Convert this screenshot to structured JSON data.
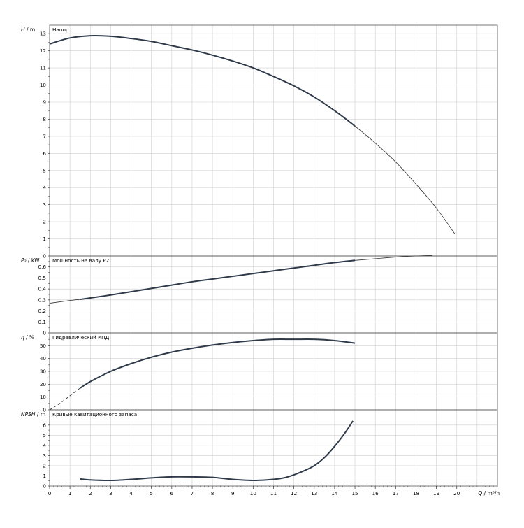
{
  "chart_data": [
    {
      "type": "line",
      "id": "head",
      "title": "Напор",
      "ylabel_sym": "H",
      "ylabel_unit": " / m",
      "xlim": [
        0,
        22
      ],
      "ylim": [
        0,
        13.5
      ],
      "yticks": [
        0,
        1,
        2,
        3,
        4,
        5,
        6,
        7,
        8,
        9,
        10,
        11,
        12,
        13
      ],
      "ytick_labels": [
        "0",
        "1",
        "2",
        "3",
        "4",
        "5",
        "6",
        "7",
        "8",
        "9",
        "10",
        "11",
        "12",
        "13"
      ],
      "series": [
        {
          "style": "thick",
          "x": [
            0,
            1,
            2,
            3,
            4,
            5,
            6,
            7,
            8,
            9,
            10,
            11,
            12,
            13,
            14,
            15
          ],
          "y": [
            12.4,
            12.75,
            12.88,
            12.85,
            12.72,
            12.55,
            12.3,
            12.05,
            11.75,
            11.4,
            11.0,
            10.5,
            9.95,
            9.3,
            8.5,
            7.6
          ]
        },
        {
          "style": "thin",
          "x": [
            15,
            16,
            17,
            18,
            19,
            19.9
          ],
          "y": [
            7.6,
            6.6,
            5.5,
            4.2,
            2.8,
            1.3
          ]
        }
      ]
    },
    {
      "type": "line",
      "id": "power",
      "title": "Мощность на валу P2",
      "ylabel_sym": "P₂",
      "ylabel_unit": " / kW",
      "xlim": [
        0,
        22
      ],
      "ylim": [
        0,
        0.7
      ],
      "yticks": [
        0,
        0.1,
        0.2,
        0.3,
        0.4,
        0.5,
        0.6
      ],
      "ytick_labels": [
        "0",
        "0.1",
        "0.2",
        "0.3",
        "0.4",
        "0.5",
        "0.6"
      ],
      "series": [
        {
          "style": "thin",
          "x": [
            0,
            1,
            1.5
          ],
          "y": [
            0.27,
            0.295,
            0.305
          ]
        },
        {
          "style": "thick",
          "x": [
            1.5,
            2,
            3,
            4,
            5,
            6,
            7,
            8,
            9,
            10,
            11,
            12,
            13,
            14,
            15
          ],
          "y": [
            0.305,
            0.318,
            0.345,
            0.375,
            0.405,
            0.435,
            0.465,
            0.49,
            0.515,
            0.54,
            0.565,
            0.59,
            0.615,
            0.64,
            0.66
          ]
        },
        {
          "style": "thin",
          "x": [
            15,
            16,
            17,
            18,
            18.8
          ],
          "y": [
            0.66,
            0.675,
            0.69,
            0.7,
            0.705
          ]
        }
      ]
    },
    {
      "type": "line",
      "id": "efficiency",
      "title": "Гидравлический КПД",
      "ylabel_sym": "η",
      "ylabel_unit": " / %",
      "xlim": [
        0,
        22
      ],
      "ylim": [
        0,
        60
      ],
      "yticks": [
        0,
        10,
        20,
        30,
        40,
        50
      ],
      "ytick_labels": [
        "0",
        "10",
        "20",
        "30",
        "40",
        "50"
      ],
      "series": [
        {
          "style": "dashed",
          "x": [
            0,
            0.5,
            1,
            1.5
          ],
          "y": [
            0,
            5,
            11,
            17
          ]
        },
        {
          "style": "thick",
          "x": [
            1.5,
            2,
            3,
            4,
            5,
            6,
            7,
            8,
            9,
            10,
            11,
            12,
            13,
            14,
            15
          ],
          "y": [
            17,
            22,
            30,
            36,
            41,
            45,
            48,
            50.5,
            52.5,
            54,
            55,
            55,
            55,
            54,
            52
          ]
        }
      ]
    },
    {
      "type": "line",
      "id": "npsh",
      "title": "Кривые кавитационного запаса",
      "ylabel_sym": "NPSH",
      "ylabel_unit": " / m",
      "xlim": [
        0,
        22
      ],
      "ylim": [
        0,
        7.5
      ],
      "yticks": [
        0,
        1,
        2,
        3,
        4,
        5,
        6
      ],
      "ytick_labels": [
        "0",
        "1",
        "2",
        "3",
        "4",
        "5",
        "6"
      ],
      "xticks": [
        0,
        1,
        2,
        3,
        4,
        5,
        6,
        7,
        8,
        9,
        10,
        11,
        12,
        13,
        14,
        15,
        16,
        17,
        18,
        19,
        20
      ],
      "xtick_labels": [
        "0",
        "1",
        "2",
        "3",
        "4",
        "5",
        "6",
        "7",
        "8",
        "9",
        "10",
        "11",
        "12",
        "13",
        "14",
        "15",
        "16",
        "17",
        "18",
        "19",
        "20"
      ],
      "xlabel_sym": "Q",
      "xlabel_unit": " / m³/h",
      "series": [
        {
          "style": "thick",
          "x": [
            1.5,
            2,
            3,
            4,
            5,
            6,
            7,
            8,
            9,
            10,
            11,
            11.5,
            12,
            12.5,
            13,
            13.5,
            14,
            14.5,
            14.9
          ],
          "y": [
            0.7,
            0.6,
            0.55,
            0.65,
            0.8,
            0.9,
            0.9,
            0.85,
            0.65,
            0.55,
            0.65,
            0.8,
            1.1,
            1.5,
            2.0,
            2.8,
            3.9,
            5.2,
            6.4
          ]
        }
      ]
    }
  ]
}
